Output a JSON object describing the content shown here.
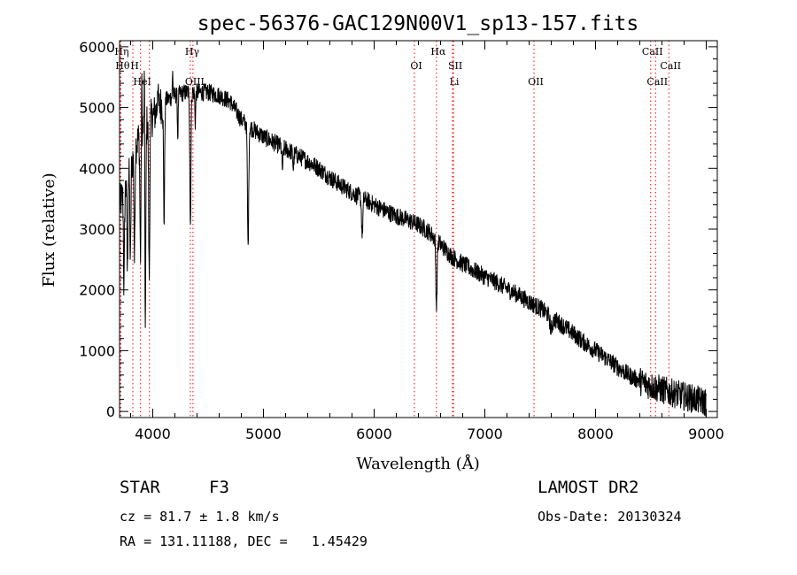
{
  "chart_data": {
    "type": "line",
    "title": "spec-56376-GAC129N00V1_sp13-157.fits",
    "xlabel": "Wavelength (Å)",
    "ylabel": "Flux (relative)",
    "xlim": [
      3700,
      9100
    ],
    "ylim": [
      -100,
      6100
    ],
    "xticks": [
      4000,
      5000,
      6000,
      7000,
      8000,
      9000
    ],
    "yticks": [
      0,
      1000,
      2000,
      3000,
      4000,
      5000,
      6000
    ],
    "grid": false,
    "line_color": "#000000",
    "marker_color": "#ff0000",
    "continuum": [
      [
        3700,
        3400
      ],
      [
        3760,
        3700
      ],
      [
        3800,
        4000
      ],
      [
        3850,
        4400
      ],
      [
        3900,
        4600
      ],
      [
        3950,
        4750
      ],
      [
        4000,
        4850
      ],
      [
        4050,
        5000
      ],
      [
        4100,
        5100
      ],
      [
        4150,
        5150
      ],
      [
        4200,
        5200
      ],
      [
        4300,
        5250
      ],
      [
        4400,
        5250
      ],
      [
        4500,
        5250
      ],
      [
        4600,
        5200
      ],
      [
        4700,
        5100
      ],
      [
        4800,
        4800
      ],
      [
        4900,
        4650
      ],
      [
        5000,
        4520
      ],
      [
        5100,
        4420
      ],
      [
        5200,
        4320
      ],
      [
        5300,
        4220
      ],
      [
        5400,
        4120
      ],
      [
        5500,
        4000
      ],
      [
        5600,
        3850
      ],
      [
        5700,
        3720
      ],
      [
        5800,
        3600
      ],
      [
        5900,
        3500
      ],
      [
        6000,
        3400
      ],
      [
        6100,
        3300
      ],
      [
        6200,
        3220
      ],
      [
        6300,
        3150
      ],
      [
        6400,
        3070
      ],
      [
        6500,
        2950
      ],
      [
        6600,
        2750
      ],
      [
        6700,
        2550
      ],
      [
        6800,
        2430
      ],
      [
        6900,
        2320
      ],
      [
        7000,
        2220
      ],
      [
        7100,
        2130
      ],
      [
        7200,
        2020
      ],
      [
        7300,
        1920
      ],
      [
        7400,
        1800
      ],
      [
        7500,
        1700
      ],
      [
        7600,
        1550
      ],
      [
        7700,
        1420
      ],
      [
        7800,
        1280
      ],
      [
        7900,
        1130
      ],
      [
        8000,
        1000
      ],
      [
        8100,
        870
      ],
      [
        8200,
        730
      ],
      [
        8300,
        600
      ],
      [
        8400,
        500
      ],
      [
        8500,
        420
      ],
      [
        8600,
        360
      ],
      [
        8700,
        300
      ],
      [
        8800,
        250
      ],
      [
        8900,
        200
      ],
      [
        9000,
        150
      ]
    ],
    "absorption_features": [
      {
        "x": 3740,
        "depth": 1600,
        "width": 6
      },
      {
        "x": 3771,
        "depth": 1500,
        "width": 6
      },
      {
        "x": 3798,
        "depth": 1600,
        "width": 6
      },
      {
        "x": 3835,
        "depth": 1800,
        "width": 6
      },
      {
        "x": 3889,
        "depth": 2000,
        "width": 7
      },
      {
        "x": 3933,
        "depth": 3400,
        "width": 6
      },
      {
        "x": 3968,
        "depth": 2600,
        "width": 7
      },
      {
        "x": 4102,
        "depth": 2000,
        "width": 7
      },
      {
        "x": 4226,
        "depth": 700,
        "width": 5
      },
      {
        "x": 4340,
        "depth": 2200,
        "width": 7
      },
      {
        "x": 4384,
        "depth": 500,
        "width": 5
      },
      {
        "x": 4861,
        "depth": 2000,
        "width": 8
      },
      {
        "x": 5172,
        "depth": 350,
        "width": 8
      },
      {
        "x": 5270,
        "depth": 250,
        "width": 6
      },
      {
        "x": 5892,
        "depth": 600,
        "width": 8
      },
      {
        "x": 6563,
        "depth": 1100,
        "width": 8
      },
      {
        "x": 7600,
        "depth": 200,
        "width": 15
      }
    ],
    "emission_features": [
      {
        "x": 3900,
        "height": 900,
        "width": 4
      },
      {
        "x": 3925,
        "height": 1200,
        "width": 4
      },
      {
        "x": 4045,
        "height": 500,
        "width": 4
      },
      {
        "x": 4180,
        "height": 400,
        "width": 4
      }
    ],
    "noise_amplitude": 150,
    "line_markers": [
      {
        "x": 3704,
        "label": "Hη",
        "row": 0
      },
      {
        "x": 3711,
        "label": "Hθ",
        "row": 1
      },
      {
        "x": 3820,
        "label": "H",
        "row": 1
      },
      {
        "x": 3889,
        "label": "HeI",
        "row": 2
      },
      {
        "x": 3970,
        "label": "",
        "row": 2
      },
      {
        "x": 4340,
        "label": "Hγ",
        "row": 0
      },
      {
        "x": 4363,
        "label": "OIII",
        "row": 2
      },
      {
        "x": 6364,
        "label": "OI",
        "row": 1
      },
      {
        "x": 6563,
        "label": "Hα",
        "row": 0
      },
      {
        "x": 6708,
        "label": "Li",
        "row": 2
      },
      {
        "x": 6717,
        "label": "SII",
        "row": 1
      },
      {
        "x": 7444,
        "label": "OII",
        "row": 2
      },
      {
        "x": 8498,
        "label": "CaII",
        "row": 0
      },
      {
        "x": 8542,
        "label": "CaII",
        "row": 2
      },
      {
        "x": 8662,
        "label": "CaII",
        "row": 1
      }
    ]
  },
  "info": {
    "object_class": "STAR",
    "subclass": "F3",
    "survey": "LAMOST DR2",
    "redshift_line": "cz = 81.7 ± 1.8 km/s",
    "obs_date_line": "Obs-Date: 20130324",
    "coord_line": "RA = 131.11188, DEC =   1.45429"
  }
}
